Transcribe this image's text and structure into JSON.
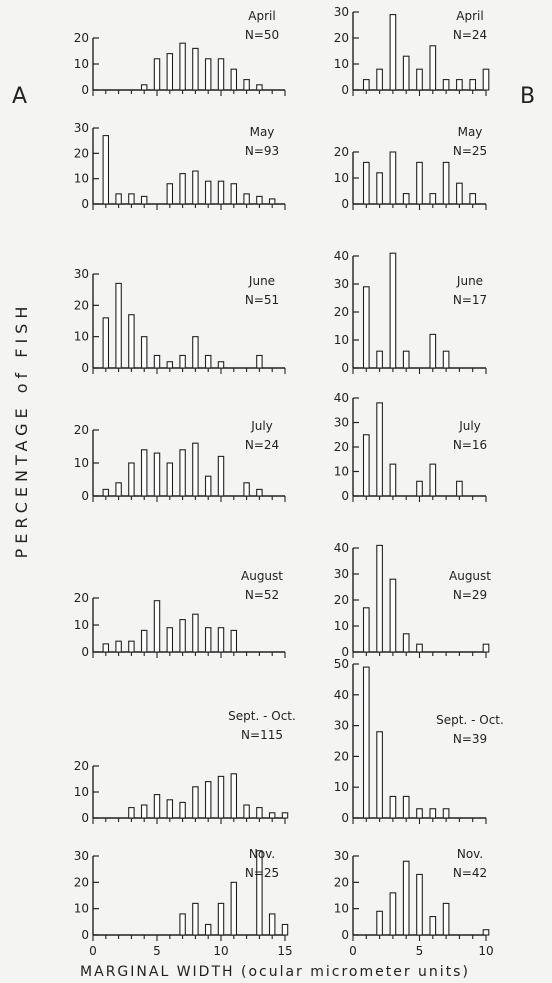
{
  "figure": {
    "panel_a_label": "A",
    "panel_b_label": "B",
    "ylabel": "PERCENTAGE of FISH",
    "xlabel": "MARGINAL WIDTH (ocular micrometer units)"
  },
  "colors": {
    "ink": "#222222",
    "bar_fill": "#ffffff",
    "background": "#f4f4f2"
  },
  "chart_data": [
    {
      "type": "bar",
      "panel": "A",
      "title": "April",
      "n_label": "N=50",
      "x": [
        4,
        5,
        6,
        7,
        8,
        9,
        10,
        11,
        12,
        13,
        14
      ],
      "values": [
        2,
        12,
        14,
        18,
        16,
        12,
        12,
        8,
        4,
        2,
        0
      ],
      "ylim": [
        0,
        20
      ],
      "yticks": [
        0,
        10,
        20
      ],
      "xlim": [
        0,
        15
      ],
      "xticks": [
        0,
        5,
        10,
        15
      ],
      "tick_labels_shown": false
    },
    {
      "type": "bar",
      "panel": "A",
      "title": "May",
      "n_label": "N=93",
      "x": [
        1,
        2,
        3,
        4,
        5,
        6,
        7,
        8,
        9,
        10,
        11,
        12,
        13,
        14
      ],
      "values": [
        27,
        4,
        4,
        3,
        0,
        8,
        12,
        13,
        9,
        9,
        8,
        4,
        3,
        2
      ],
      "ylim": [
        0,
        30
      ],
      "yticks": [
        0,
        10,
        20,
        30
      ],
      "xlim": [
        0,
        15
      ],
      "xticks": [
        0,
        5,
        10,
        15
      ],
      "tick_labels_shown": false
    },
    {
      "type": "bar",
      "panel": "A",
      "title": "June",
      "n_label": "N=51",
      "x": [
        1,
        2,
        3,
        4,
        5,
        6,
        7,
        8,
        9,
        10,
        11,
        12,
        13
      ],
      "values": [
        16,
        27,
        17,
        10,
        4,
        2,
        4,
        10,
        4,
        2,
        0,
        0,
        4
      ],
      "ylim": [
        0,
        30
      ],
      "yticks": [
        0,
        10,
        20,
        30
      ],
      "xlim": [
        0,
        15
      ],
      "xticks": [
        0,
        5,
        10,
        15
      ],
      "tick_labels_shown": false
    },
    {
      "type": "bar",
      "panel": "A",
      "title": "July",
      "n_label": "N=24",
      "x": [
        1,
        2,
        3,
        4,
        5,
        6,
        7,
        8,
        9,
        10,
        11,
        12,
        13
      ],
      "values": [
        2,
        4,
        10,
        14,
        13,
        10,
        14,
        16,
        6,
        12,
        0,
        4,
        2
      ],
      "ylim": [
        0,
        20
      ],
      "yticks": [
        0,
        10,
        20
      ],
      "xlim": [
        0,
        15
      ],
      "xticks": [
        0,
        5,
        10,
        15
      ],
      "tick_labels_shown": false
    },
    {
      "type": "bar",
      "panel": "A",
      "title": "August",
      "n_label": "N=52",
      "x": [
        1,
        2,
        3,
        4,
        5,
        6,
        7,
        8,
        9,
        10,
        11
      ],
      "values": [
        3,
        4,
        4,
        8,
        19,
        9,
        12,
        14,
        9,
        9,
        8
      ],
      "ylim": [
        0,
        20
      ],
      "yticks": [
        0,
        10,
        20
      ],
      "xlim": [
        0,
        15
      ],
      "xticks": [
        0,
        5,
        10,
        15
      ],
      "tick_labels_shown": false
    },
    {
      "type": "bar",
      "panel": "A",
      "title": "Sept. - Oct.",
      "n_label": "N=115",
      "x": [
        3,
        4,
        5,
        6,
        7,
        8,
        9,
        10,
        11,
        12,
        13,
        14,
        15
      ],
      "values": [
        4,
        5,
        9,
        7,
        6,
        12,
        14,
        16,
        17,
        5,
        4,
        2,
        2
      ],
      "ylim": [
        0,
        20
      ],
      "yticks": [
        0,
        10,
        20
      ],
      "xlim": [
        0,
        15
      ],
      "xticks": [
        0,
        5,
        10,
        15
      ],
      "tick_labels_shown": false
    },
    {
      "type": "bar",
      "panel": "A",
      "title": "Nov.",
      "n_label": "N=25",
      "x": [
        7,
        8,
        9,
        10,
        11,
        12,
        13,
        14,
        15
      ],
      "values": [
        8,
        12,
        4,
        12,
        20,
        0,
        32,
        8,
        4
      ],
      "ylim": [
        0,
        30
      ],
      "yticks": [
        0,
        10,
        20,
        30
      ],
      "xlim": [
        0,
        15
      ],
      "xticks": [
        0,
        5,
        10,
        15
      ],
      "tick_labels_shown": true,
      "tick_labels": [
        "0",
        "5",
        "10",
        "15"
      ]
    },
    {
      "type": "bar",
      "panel": "B",
      "title": "April",
      "n_label": "N=24",
      "x": [
        1,
        2,
        3,
        4,
        5,
        6,
        7,
        8,
        9,
        10
      ],
      "values": [
        4,
        8,
        29,
        13,
        8,
        17,
        4,
        4,
        4,
        8
      ],
      "ylim": [
        0,
        30
      ],
      "yticks": [
        0,
        10,
        20,
        30
      ],
      "xlim": [
        0,
        10
      ],
      "xticks": [
        0,
        5,
        10
      ],
      "tick_labels_shown": false
    },
    {
      "type": "bar",
      "panel": "B",
      "title": "May",
      "n_label": "N=25",
      "x": [
        1,
        2,
        3,
        4,
        5,
        6,
        7,
        8,
        9
      ],
      "values": [
        16,
        12,
        20,
        4,
        16,
        4,
        16,
        8,
        4
      ],
      "ylim": [
        0,
        20
      ],
      "yticks": [
        0,
        10,
        20
      ],
      "xlim": [
        0,
        10
      ],
      "xticks": [
        0,
        5,
        10
      ],
      "tick_labels_shown": false
    },
    {
      "type": "bar",
      "panel": "B",
      "title": "June",
      "n_label": "N=17",
      "x": [
        1,
        2,
        3,
        4,
        5,
        6,
        7
      ],
      "values": [
        29,
        6,
        41,
        6,
        0,
        12,
        6
      ],
      "ylim": [
        0,
        40
      ],
      "yticks": [
        0,
        10,
        20,
        30,
        40
      ],
      "xlim": [
        0,
        10
      ],
      "xticks": [
        0,
        5,
        10
      ],
      "tick_labels_shown": false
    },
    {
      "type": "bar",
      "panel": "B",
      "title": "July",
      "n_label": "N=16",
      "x": [
        1,
        2,
        3,
        4,
        5,
        6,
        7,
        8
      ],
      "values": [
        25,
        38,
        13,
        0,
        6,
        13,
        0,
        6
      ],
      "ylim": [
        0,
        40
      ],
      "yticks": [
        0,
        10,
        20,
        30,
        40
      ],
      "xlim": [
        0,
        10
      ],
      "xticks": [
        0,
        5,
        10
      ],
      "tick_labels_shown": false
    },
    {
      "type": "bar",
      "panel": "B",
      "title": "August",
      "n_label": "N=29",
      "x": [
        1,
        2,
        3,
        4,
        5,
        6,
        7,
        8,
        9,
        10
      ],
      "values": [
        17,
        41,
        28,
        7,
        3,
        0,
        0,
        0,
        0,
        3
      ],
      "ylim": [
        0,
        40
      ],
      "yticks": [
        0,
        10,
        20,
        30,
        40
      ],
      "xlim": [
        0,
        10
      ],
      "xticks": [
        0,
        5,
        10
      ],
      "tick_labels_shown": false
    },
    {
      "type": "bar",
      "panel": "B",
      "title": "Sept. - Oct.",
      "n_label": "N=39",
      "x": [
        1,
        2,
        3,
        4,
        5,
        6,
        7
      ],
      "values": [
        49,
        28,
        7,
        7,
        3,
        3,
        3
      ],
      "ylim": [
        0,
        50
      ],
      "yticks": [
        0,
        10,
        20,
        30,
        40,
        50
      ],
      "xlim": [
        0,
        10
      ],
      "xticks": [
        0,
        5,
        10
      ],
      "tick_labels_shown": false
    },
    {
      "type": "bar",
      "panel": "B",
      "title": "Nov.",
      "n_label": "N=42",
      "x": [
        1,
        2,
        3,
        4,
        5,
        6,
        7,
        8,
        9,
        10
      ],
      "values": [
        0,
        9,
        16,
        28,
        23,
        7,
        12,
        0,
        0,
        2
      ],
      "ylim": [
        0,
        30
      ],
      "yticks": [
        0,
        10,
        20,
        30
      ],
      "xlim": [
        0,
        10
      ],
      "xticks": [
        0,
        5,
        10
      ],
      "tick_labels_shown": true,
      "tick_labels": [
        "0",
        "5",
        "10"
      ]
    }
  ]
}
